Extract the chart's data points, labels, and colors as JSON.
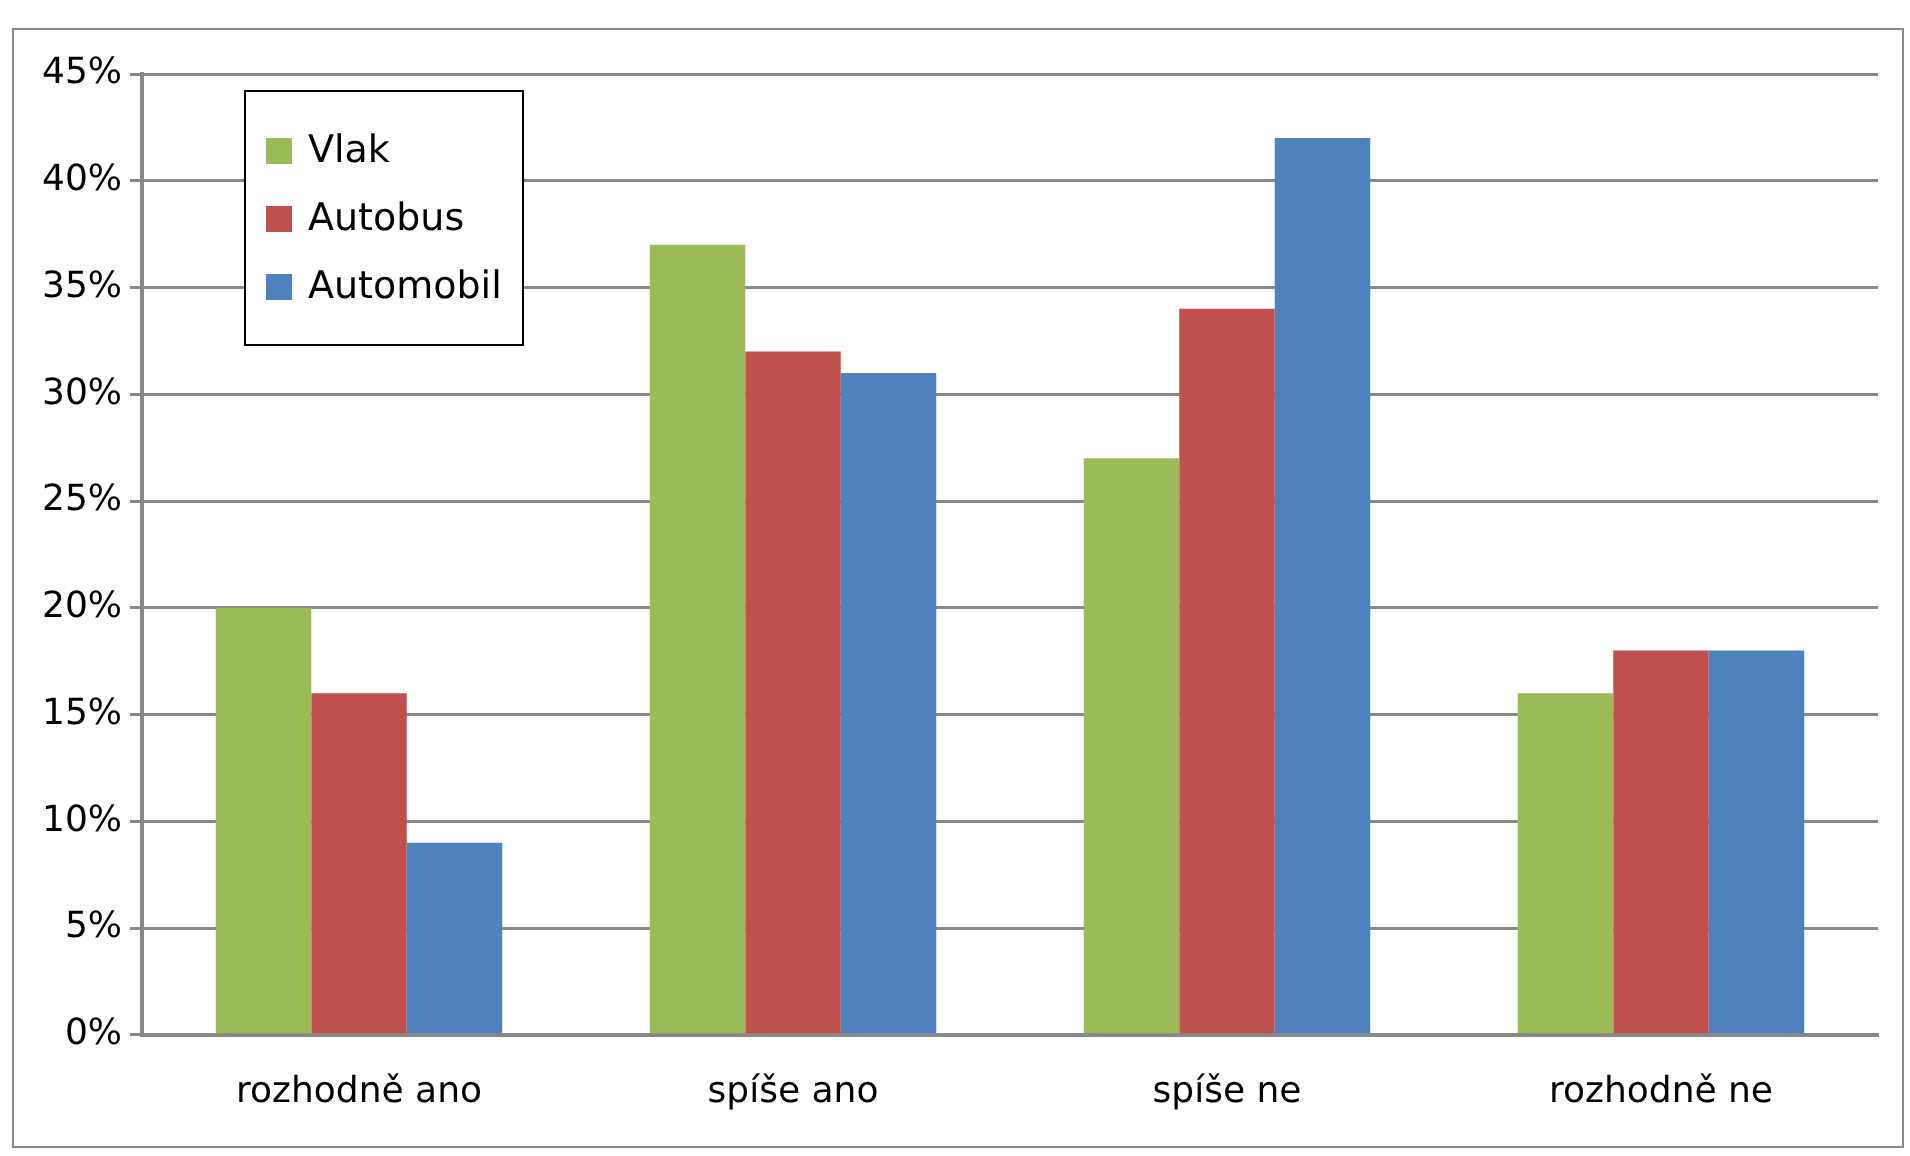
{
  "chart_data": {
    "type": "bar",
    "categories": [
      "rozhodně ano",
      "spíše ano",
      "spíše ne",
      "rozhodně ne"
    ],
    "series": [
      {
        "name": "Vlak",
        "color": "#9bbb59",
        "values": [
          20,
          37,
          27,
          16
        ]
      },
      {
        "name": "Autobus",
        "color": "#c0504d",
        "values": [
          16,
          32,
          34,
          18
        ]
      },
      {
        "name": "Automobil",
        "color": "#4f81bd",
        "values": [
          9,
          31,
          42,
          18
        ]
      }
    ],
    "ylim": [
      0,
      45
    ],
    "yticks": [
      {
        "value": 0,
        "label": "0%"
      },
      {
        "value": 5,
        "label": "5%"
      },
      {
        "value": 10,
        "label": "10%"
      },
      {
        "value": 15,
        "label": "15%"
      },
      {
        "value": 20,
        "label": "20%"
      },
      {
        "value": 25,
        "label": "25%"
      },
      {
        "value": 30,
        "label": "30%"
      },
      {
        "value": 35,
        "label": "35%"
      },
      {
        "value": 40,
        "label": "40%"
      },
      {
        "value": 45,
        "label": "45%"
      }
    ],
    "grid": "y",
    "legend": "top left"
  }
}
